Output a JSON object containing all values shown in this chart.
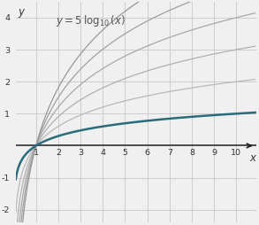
{
  "xlim": [
    0.09,
    10.9
  ],
  "ylim": [
    -2.4,
    4.5
  ],
  "xticks": [
    1,
    2,
    3,
    4,
    5,
    6,
    7,
    8,
    9,
    10
  ],
  "yticks": [
    -2,
    -1,
    1,
    2,
    3,
    4
  ],
  "xlabel": "x",
  "ylabel": "y",
  "bg_color": "#f0f0f0",
  "grid_color": "#c8c8c8",
  "highlighted_color": "#2a6b7c",
  "gray_colors": [
    "#b8b8b8",
    "#b0b0b0",
    "#a8a8a8",
    "#a0a0a0",
    "#989898"
  ],
  "highlighted_multiplier": 1,
  "gray_multipliers": [
    2,
    3,
    4,
    5,
    6
  ],
  "figsize": [
    2.93,
    2.55
  ],
  "dpi": 100
}
